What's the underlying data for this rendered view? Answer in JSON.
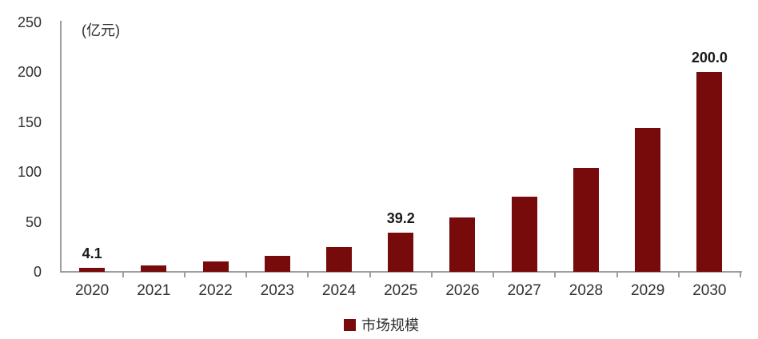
{
  "chart_data": {
    "type": "bar",
    "title": "",
    "unit_label": "(亿元)",
    "categories": [
      "2020",
      "2021",
      "2022",
      "2023",
      "2024",
      "2025",
      "2026",
      "2027",
      "2028",
      "2029",
      "2030"
    ],
    "series": [
      {
        "name": "市场规模",
        "values": [
          4.1,
          6.4,
          10.1,
          15.9,
          24.9,
          39.2,
          54.3,
          75.2,
          104.2,
          144.4,
          200.0
        ],
        "point_labels": [
          "4.1",
          null,
          null,
          null,
          null,
          "39.2",
          null,
          null,
          null,
          null,
          "200.0"
        ]
      }
    ],
    "ylim": [
      0,
      250
    ],
    "yticks": [
      0,
      50,
      100,
      150,
      200,
      250
    ],
    "grid": false,
    "legend_position": "bottom-center",
    "colors": {
      "bar": "#770b0c",
      "axis": "#9e9e9e",
      "tick_label": "#303030",
      "data_label": "#17191d"
    }
  }
}
